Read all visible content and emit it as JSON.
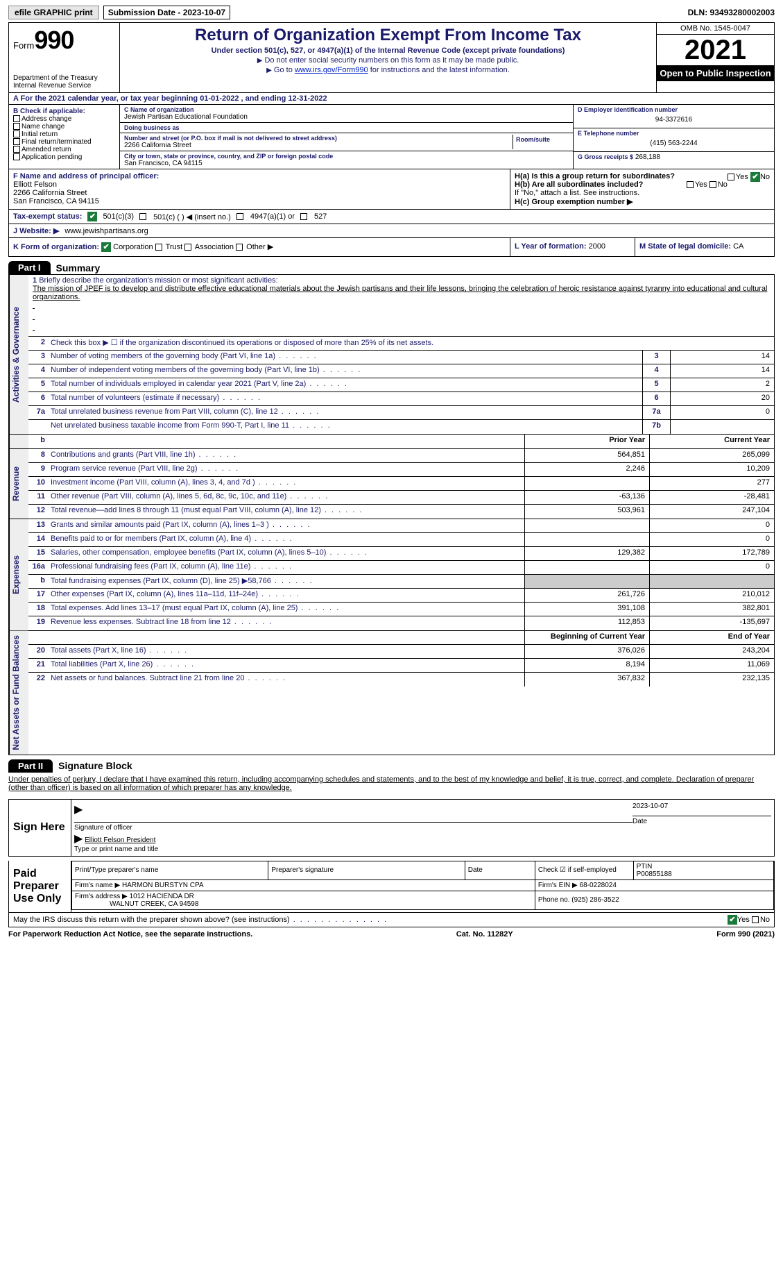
{
  "topbar": {
    "efile": "efile GRAPHIC print",
    "submission_label": "Submission Date - 2023-10-07",
    "dln": "DLN: 93493280002003"
  },
  "header": {
    "form_label": "Form",
    "form_number": "990",
    "dept": "Department of the Treasury Internal Revenue Service",
    "title": "Return of Organization Exempt From Income Tax",
    "sub1": "Under section 501(c), 527, or 4947(a)(1) of the Internal Revenue Code (except private foundations)",
    "sub2a": "Do not enter social security numbers on this form as it may be made public.",
    "sub2b_pre": "Go to ",
    "sub2b_link": "www.irs.gov/Form990",
    "sub2b_post": " for instructions and the latest information.",
    "omb": "OMB No. 1545-0047",
    "year": "2021",
    "otp": "Open to Public Inspection"
  },
  "row_a": "A For the 2021 calendar year, or tax year beginning 01-01-2022    , and ending 12-31-2022",
  "col_b": {
    "title": "B Check if applicable:",
    "items": [
      "Address change",
      "Name change",
      "Initial return",
      "Final return/terminated",
      "Amended return",
      "Application pending"
    ]
  },
  "col_c": {
    "name_lbl": "C Name of organization",
    "name": "Jewish Partisan Educational Foundation",
    "dba_lbl": "Doing business as",
    "dba": "",
    "addr_lbl": "Number and street (or P.O. box if mail is not delivered to street address)",
    "room_lbl": "Room/suite",
    "addr": "2266 California Street",
    "city_lbl": "City or town, state or province, country, and ZIP or foreign postal code",
    "city": "San Francisco, CA  94115"
  },
  "col_d": {
    "ein_lbl": "D Employer identification number",
    "ein": "94-3372616",
    "tel_lbl": "E Telephone number",
    "tel": "(415) 563-2244",
    "gross_lbl": "G Gross receipts $",
    "gross": "268,188"
  },
  "row_f": {
    "lbl": "F Name and address of principal officer:",
    "name": "Elliott Felson",
    "addr1": "2266 California Street",
    "addr2": "San Francisco, CA  94115"
  },
  "row_h": {
    "a_lbl": "H(a)  Is this a group return for subordinates?",
    "yes": "Yes",
    "no": "No",
    "b_lbl": "H(b)  Are all subordinates included?",
    "b_note": "If \"No,\" attach a list. See instructions.",
    "c_lbl": "H(c)  Group exemption number ▶"
  },
  "row_i": {
    "lbl": "Tax-exempt status:",
    "o1": "501(c)(3)",
    "o2": "501(c) (  ) ◀ (insert no.)",
    "o3": "4947(a)(1) or",
    "o4": "527"
  },
  "row_j": {
    "lbl": "J Website: ▶",
    "val": "www.jewishpartisans.org"
  },
  "row_k": {
    "lbl": "K Form of organization:",
    "o1": "Corporation",
    "o2": "Trust",
    "o3": "Association",
    "o4": "Other ▶",
    "l_lbl": "L Year of formation:",
    "l_val": "2000",
    "m_lbl": "M State of legal domicile:",
    "m_val": "CA"
  },
  "part1": {
    "tab": "Part I",
    "title": "Summary",
    "q1_lbl": "Briefly describe the organization's mission or most significant activities:",
    "q1_txt": "The mission of JPEF is to develop and distribute effective educational materials about the Jewish partisans and their life lessons, bringing the celebration of heroic resistance against tyranny into educational and cultural organizations.",
    "q2": "Check this box ▶ ☐ if the organization discontinued its operations or disposed of more than 25% of its net assets.",
    "lines_ag": [
      {
        "n": "3",
        "t": "Number of voting members of the governing body (Part VI, line 1a)",
        "b": "3",
        "v": "14"
      },
      {
        "n": "4",
        "t": "Number of independent voting members of the governing body (Part VI, line 1b)",
        "b": "4",
        "v": "14"
      },
      {
        "n": "5",
        "t": "Total number of individuals employed in calendar year 2021 (Part V, line 2a)",
        "b": "5",
        "v": "2"
      },
      {
        "n": "6",
        "t": "Total number of volunteers (estimate if necessary)",
        "b": "6",
        "v": "20"
      },
      {
        "n": "7a",
        "t": "Total unrelated business revenue from Part VIII, column (C), line 12",
        "b": "7a",
        "v": "0"
      },
      {
        "n": "",
        "t": "Net unrelated business taxable income from Form 990-T, Part I, line 11",
        "b": "7b",
        "v": ""
      }
    ],
    "col_py": "Prior Year",
    "col_cy": "Current Year",
    "lines_rev": [
      {
        "n": "8",
        "t": "Contributions and grants (Part VIII, line 1h)",
        "py": "564,851",
        "cy": "265,099"
      },
      {
        "n": "9",
        "t": "Program service revenue (Part VIII, line 2g)",
        "py": "2,246",
        "cy": "10,209"
      },
      {
        "n": "10",
        "t": "Investment income (Part VIII, column (A), lines 3, 4, and 7d )",
        "py": "",
        "cy": "277"
      },
      {
        "n": "11",
        "t": "Other revenue (Part VIII, column (A), lines 5, 6d, 8c, 9c, 10c, and 11e)",
        "py": "-63,136",
        "cy": "-28,481"
      },
      {
        "n": "12",
        "t": "Total revenue—add lines 8 through 11 (must equal Part VIII, column (A), line 12)",
        "py": "503,961",
        "cy": "247,104"
      }
    ],
    "lines_exp": [
      {
        "n": "13",
        "t": "Grants and similar amounts paid (Part IX, column (A), lines 1–3 )",
        "py": "",
        "cy": "0"
      },
      {
        "n": "14",
        "t": "Benefits paid to or for members (Part IX, column (A), line 4)",
        "py": "",
        "cy": "0"
      },
      {
        "n": "15",
        "t": "Salaries, other compensation, employee benefits (Part IX, column (A), lines 5–10)",
        "py": "129,382",
        "cy": "172,789"
      },
      {
        "n": "16a",
        "t": "Professional fundraising fees (Part IX, column (A), line 11e)",
        "py": "",
        "cy": "0"
      },
      {
        "n": "b",
        "t": "Total fundraising expenses (Part IX, column (D), line 25) ▶58,766",
        "py": "grey",
        "cy": "grey"
      },
      {
        "n": "17",
        "t": "Other expenses (Part IX, column (A), lines 11a–11d, 11f–24e)",
        "py": "261,726",
        "cy": "210,012"
      },
      {
        "n": "18",
        "t": "Total expenses. Add lines 13–17 (must equal Part IX, column (A), line 25)",
        "py": "391,108",
        "cy": "382,801"
      },
      {
        "n": "19",
        "t": "Revenue less expenses. Subtract line 18 from line 12",
        "py": "112,853",
        "cy": "-135,697"
      }
    ],
    "col_boy": "Beginning of Current Year",
    "col_eoy": "End of Year",
    "lines_na": [
      {
        "n": "20",
        "t": "Total assets (Part X, line 16)",
        "py": "376,026",
        "cy": "243,204"
      },
      {
        "n": "21",
        "t": "Total liabilities (Part X, line 26)",
        "py": "8,194",
        "cy": "11,069"
      },
      {
        "n": "22",
        "t": "Net assets or fund balances. Subtract line 21 from line 20",
        "py": "367,832",
        "cy": "232,135"
      }
    ],
    "vtabs": {
      "ag": "Activities & Governance",
      "rev": "Revenue",
      "exp": "Expenses",
      "na": "Net Assets or Fund Balances"
    }
  },
  "part2": {
    "tab": "Part II",
    "title": "Signature Block",
    "decl": "Under penalties of perjury, I declare that I have examined this return, including accompanying schedules and statements, and to the best of my knowledge and belief, it is true, correct, and complete. Declaration of preparer (other than officer) is based on all information of which preparer has any knowledge.",
    "sign_here": "Sign Here",
    "sig_lbl": "Signature of officer",
    "date_lbl": "Date",
    "sig_date": "2023-10-07",
    "name_lbl": "Type or print name and title",
    "officer": "Elliott Felson  President",
    "paid": "Paid Preparer Use Only",
    "p_name_lbl": "Print/Type preparer's name",
    "p_sig_lbl": "Preparer's signature",
    "p_date_lbl": "Date",
    "p_check_lbl": "Check ☑ if self-employed",
    "ptin_lbl": "PTIN",
    "ptin": "P00855188",
    "firm_name_lbl": "Firm's name    ▶",
    "firm_name": "HARMON BURSTYN CPA",
    "firm_ein_lbl": "Firm's EIN ▶",
    "firm_ein": "68-0228024",
    "firm_addr_lbl": "Firm's address ▶",
    "firm_addr1": "1012 HACIENDA DR",
    "firm_addr2": "WALNUT CREEK, CA  94598",
    "phone_lbl": "Phone no.",
    "phone": "(925) 286-3522",
    "discuss": "May the IRS discuss this return with the preparer shown above? (see instructions)",
    "yes": "Yes",
    "no": "No"
  },
  "footer": {
    "left": "For Paperwork Reduction Act Notice, see the separate instructions.",
    "mid": "Cat. No. 11282Y",
    "right": "Form 990 (2021)"
  },
  "colors": {
    "accent": "#1a1a6a",
    "link": "#0020c2",
    "check": "#1a7a3a"
  }
}
